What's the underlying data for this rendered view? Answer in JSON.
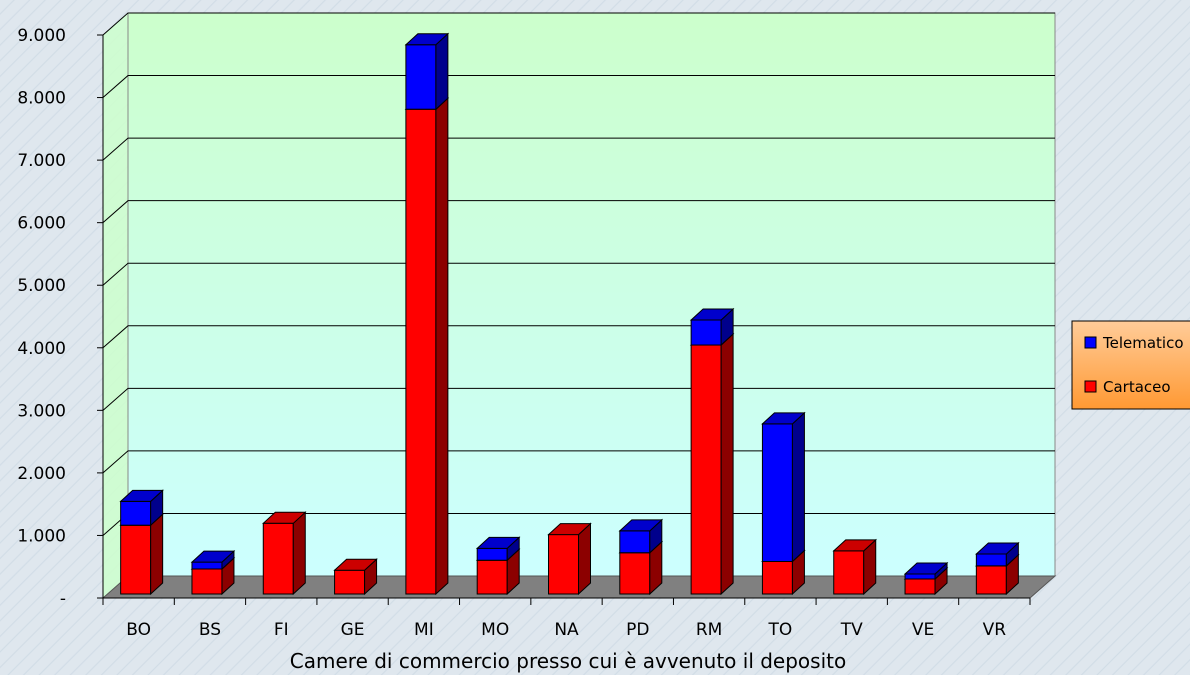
{
  "chart_data": {
    "type": "bar",
    "stacked": true,
    "style": "3d",
    "categories": [
      "BO",
      "BS",
      "FI",
      "GE",
      "MI",
      "MO",
      "NA",
      "PD",
      "RM",
      "TO",
      "TV",
      "VE",
      "VR"
    ],
    "series": [
      {
        "name": "Cartaceo",
        "color": "#ff0000",
        "values": [
          1100,
          400,
          1130,
          380,
          7750,
          540,
          950,
          660,
          3980,
          520,
          690,
          240,
          450
        ]
      },
      {
        "name": "Telematico",
        "color": "#0000ff",
        "values": [
          380,
          110,
          0,
          0,
          1030,
          190,
          0,
          350,
          400,
          2200,
          0,
          80,
          190
        ]
      }
    ],
    "title": "",
    "xlabel": "Camere di commercio presso cui è avvenuto il deposito",
    "ylabel": "",
    "ylim": [
      0,
      9000
    ],
    "yticks": [
      0,
      1000,
      2000,
      3000,
      4000,
      5000,
      6000,
      7000,
      8000,
      9000
    ],
    "ytick_labels": [
      "-",
      "1.000",
      "2.000",
      "3.000",
      "4.000",
      "5.000",
      "6.000",
      "7.000",
      "8.000",
      "9.000"
    ],
    "grid": true,
    "legend_placement": "right",
    "legend_order": [
      "Telematico",
      "Cartaceo"
    ],
    "colors": {
      "wall_top": "#ccffcc",
      "wall_bottom": "#ccffff",
      "floor": "#808080",
      "legend_bg": "#ff9933"
    }
  }
}
